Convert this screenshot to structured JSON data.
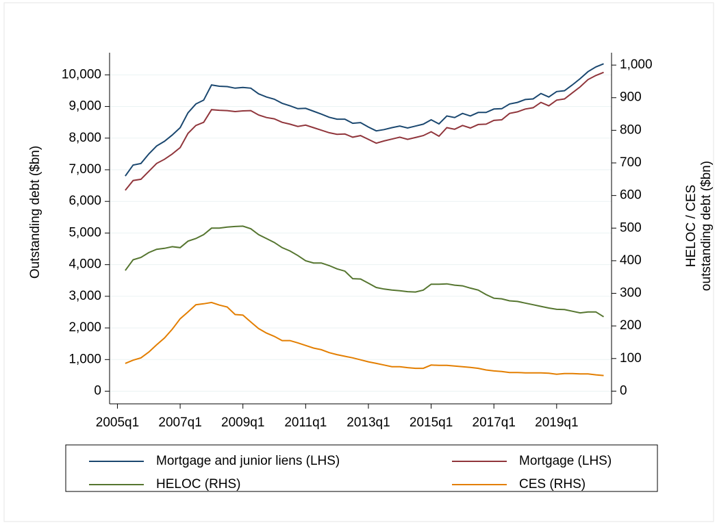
{
  "chart_data": {
    "type": "line",
    "x": [
      "2005q2",
      "2005q3",
      "2005q4",
      "2006q1",
      "2006q2",
      "2006q3",
      "2006q4",
      "2007q1",
      "2007q2",
      "2007q3",
      "2007q4",
      "2008q1",
      "2008q2",
      "2008q3",
      "2008q4",
      "2009q1",
      "2009q2",
      "2009q3",
      "2009q4",
      "2010q1",
      "2010q2",
      "2010q3",
      "2010q4",
      "2011q1",
      "2011q2",
      "2011q3",
      "2011q4",
      "2012q1",
      "2012q2",
      "2012q3",
      "2012q4",
      "2013q1",
      "2013q2",
      "2013q3",
      "2013q4",
      "2014q1",
      "2014q2",
      "2014q3",
      "2014q4",
      "2015q1",
      "2015q2",
      "2015q3",
      "2015q4",
      "2016q1",
      "2016q2",
      "2016q3",
      "2016q4",
      "2017q1",
      "2017q2",
      "2017q3",
      "2017q4",
      "2018q1",
      "2018q2",
      "2018q3",
      "2018q4",
      "2019q1",
      "2019q2",
      "2019q3",
      "2019q4",
      "2020q1",
      "2020q2",
      "2020q3"
    ],
    "xlim": [
      "2004q4",
      "2020q4"
    ],
    "xticks": [
      "2005q1",
      "2007q1",
      "2009q1",
      "2011q1",
      "2013q1",
      "2015q1",
      "2017q1",
      "2019q1"
    ],
    "ylabel": "Outstanding debt ($bn)",
    "y2label": [
      "HELOC / CES",
      "outstanding debt ($bn)"
    ],
    "ylim": [
      -400,
      10700
    ],
    "yticks": [
      0,
      {
        "value": 1000,
        "label": "1,000"
      },
      {
        "value": 2000,
        "label": "2,000"
      },
      {
        "value": 3000,
        "label": "3,000"
      },
      {
        "value": 4000,
        "label": "4,000"
      },
      {
        "value": 5000,
        "label": "5,000"
      },
      {
        "value": 6000,
        "label": "6,000"
      },
      {
        "value": 7000,
        "label": "7,000"
      },
      {
        "value": 8000,
        "label": "8,000"
      },
      {
        "value": 9000,
        "label": "9,000"
      },
      {
        "value": 10000,
        "label": "10,000"
      }
    ],
    "y2lim": [
      -39,
      1038
    ],
    "y2ticks": [
      0,
      100,
      200,
      300,
      400,
      500,
      600,
      700,
      800,
      900,
      {
        "value": 1000,
        "label": "1,000"
      }
    ],
    "grid": true,
    "legend": "bottom",
    "series": [
      {
        "name": "Mortgage and junior liens (LHS)",
        "color": "#1a476f",
        "axis": "y",
        "values": [
          6800,
          7150,
          7200,
          7500,
          7750,
          7900,
          8100,
          8330,
          8800,
          9080,
          9200,
          9680,
          9640,
          9630,
          9580,
          9600,
          9580,
          9400,
          9300,
          9230,
          9100,
          9020,
          8930,
          8940,
          8850,
          8760,
          8660,
          8600,
          8600,
          8470,
          8490,
          8350,
          8230,
          8270,
          8330,
          8380,
          8320,
          8380,
          8440,
          8580,
          8450,
          8700,
          8650,
          8780,
          8700,
          8810,
          8810,
          8920,
          8930,
          9080,
          9130,
          9220,
          9240,
          9410,
          9300,
          9470,
          9500,
          9680,
          9880,
          10100,
          10250,
          10350
        ]
      },
      {
        "name": "Mortgage (LHS)",
        "color": "#90353b",
        "axis": "y",
        "values": [
          6350,
          6660,
          6700,
          6950,
          7200,
          7330,
          7500,
          7700,
          8150,
          8400,
          8500,
          8900,
          8880,
          8870,
          8840,
          8860,
          8870,
          8730,
          8650,
          8610,
          8500,
          8440,
          8370,
          8410,
          8330,
          8250,
          8170,
          8120,
          8130,
          8030,
          8080,
          7960,
          7840,
          7910,
          7970,
          8030,
          7960,
          8020,
          8080,
          8200,
          8060,
          8330,
          8280,
          8400,
          8320,
          8430,
          8440,
          8560,
          8580,
          8780,
          8830,
          8920,
          8960,
          9130,
          9020,
          9200,
          9240,
          9430,
          9620,
          9850,
          9980,
          10080
        ]
      },
      {
        "name": "HELOC (RHS)",
        "color": "#55752f",
        "axis": "y2",
        "values": [
          370,
          403,
          410,
          425,
          435,
          438,
          443,
          440,
          460,
          468,
          480,
          500,
          500,
          503,
          505,
          506,
          498,
          480,
          468,
          456,
          440,
          430,
          416,
          400,
          393,
          393,
          385,
          375,
          368,
          345,
          344,
          331,
          318,
          313,
          310,
          308,
          305,
          304,
          310,
          328,
          328,
          329,
          325,
          323,
          316,
          310,
          296,
          285,
          283,
          277,
          275,
          270,
          265,
          260,
          255,
          251,
          250,
          245,
          240,
          243,
          243,
          228
        ]
      },
      {
        "name": "CES (RHS)",
        "color": "#e37e00",
        "axis": "y2",
        "values": [
          85,
          95,
          102,
          120,
          142,
          163,
          190,
          222,
          243,
          265,
          268,
          272,
          264,
          258,
          235,
          233,
          212,
          192,
          178,
          168,
          155,
          155,
          148,
          140,
          132,
          127,
          118,
          112,
          107,
          102,
          96,
          90,
          85,
          80,
          75,
          75,
          72,
          70,
          70,
          80,
          79,
          79,
          77,
          75,
          73,
          70,
          65,
          62,
          60,
          57,
          57,
          56,
          56,
          56,
          55,
          52,
          54,
          54,
          53,
          53,
          50,
          48
        ]
      }
    ]
  }
}
